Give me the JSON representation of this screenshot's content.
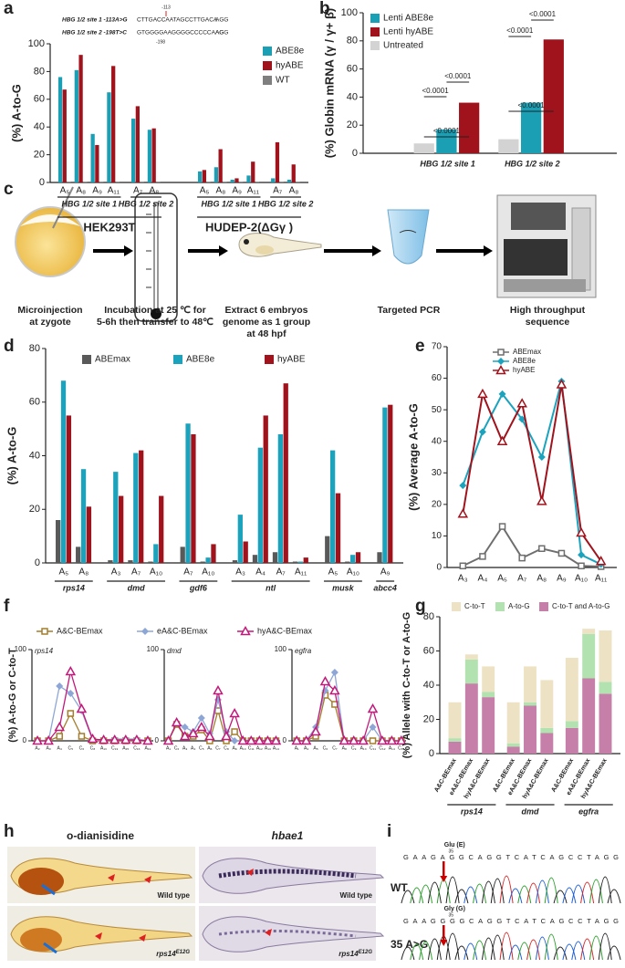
{
  "chart_data": [
    {
      "type": "bar",
      "panel": "a",
      "ylabel": "(%) A-to-G",
      "sequences": [
        {
          "label": "HBG 1/2 site 1 -113A>G",
          "sequence": "CTTGACCAATAGCCTTGACA",
          "pam": "AGG",
          "position": "-113"
        },
        {
          "label": "HBG 1/2 site 2 -198T>C",
          "sequence": "GTGGGGAAGGGGCCCCCAAG",
          "pam": "AGG",
          "position": "-198"
        }
      ],
      "groups": [
        {
          "label": "HEK293T",
          "groups": [
            {
              "label": "HBG 1/2 site 1",
              "categories": [
                "A₅",
                "A₈",
                "A₉",
                "A₁₁"
              ]
            },
            {
              "label": "HBG 1/2 site 2",
              "categories": [
                "A₇",
                "A₈"
              ]
            }
          ]
        },
        {
          "label": "HUDEP-2(ΔGγ )",
          "groups": [
            {
              "label": "HBG 1/2 site 1",
              "categories": [
                "A₅",
                "A₈",
                "A₉",
                "A₁₁"
              ]
            },
            {
              "label": "HBG 1/2 site 2",
              "categories": [
                "A₇",
                "A₈"
              ]
            }
          ]
        }
      ],
      "series": [
        {
          "name": "ABE8e",
          "color": "#1b9fb5",
          "values": [
            76,
            81,
            35,
            65,
            46,
            38,
            8,
            11,
            2,
            5,
            3,
            2
          ]
        },
        {
          "name": "hyABE",
          "color": "#a1131c",
          "values": [
            67,
            92,
            27,
            84,
            55,
            39,
            9,
            24,
            3,
            15,
            29,
            13
          ]
        },
        {
          "name": "WT",
          "color": "#7f7f7f",
          "values": [
            0.5,
            0.5,
            0.5,
            0.5,
            0.5,
            0.5,
            0.5,
            0.5,
            0.5,
            0.5,
            0.5,
            0.5
          ]
        }
      ],
      "ylim": [
        0,
        100
      ],
      "yticks": [
        0,
        20,
        40,
        60,
        80,
        100
      ]
    },
    {
      "type": "bar",
      "panel": "b",
      "ylabel": "(%) Globin mRNA (γ / γ+ β)",
      "categories": [
        "HBG 1/2 site 1",
        "HBG 1/2 site 2"
      ],
      "series": [
        {
          "name": "Lenti ABE8e",
          "color": "#1b9fb5",
          "values": [
            17,
            36
          ]
        },
        {
          "name": "Lenti hyABE",
          "color": "#a1131c",
          "values": [
            36,
            81
          ]
        },
        {
          "name": "Untreated",
          "color": "#d3d3d3",
          "values": [
            7,
            10
          ]
        }
      ],
      "annotations": [
        "<0.0001",
        "<0.0001",
        "<0.0001",
        "<0.0001",
        "<0.0001",
        "<0.0001"
      ],
      "ylim": [
        0,
        100
      ],
      "yticks": [
        0,
        20,
        40,
        60,
        80,
        100
      ]
    },
    {
      "type": "bar",
      "panel": "d",
      "ylabel": "(%) A-to-G",
      "groups": [
        {
          "label": "rps14",
          "categories": [
            "A₅",
            "A₈"
          ]
        },
        {
          "label": "dmd",
          "categories": [
            "A₃",
            "A₇",
            "A₁₀"
          ]
        },
        {
          "label": "gdf6",
          "categories": [
            "A₇",
            "A₁₀"
          ]
        },
        {
          "label": "ntl",
          "categories": [
            "A₃",
            "A₄",
            "A₇",
            "A₁₁"
          ]
        },
        {
          "label": "musk",
          "categories": [
            "A₅",
            "A₁₀"
          ]
        },
        {
          "label": "abcc4",
          "categories": [
            "A₉"
          ]
        }
      ],
      "series": [
        {
          "name": "ABEmax",
          "color": "#595959",
          "values": [
            16,
            6,
            1,
            1,
            0.5,
            6,
            0.5,
            1,
            3,
            4,
            0.5,
            10,
            0.5,
            4
          ]
        },
        {
          "name": "ABE8e",
          "color": "#1ba3bd",
          "values": [
            68,
            35,
            34,
            41,
            7,
            52,
            2,
            18,
            43,
            48,
            0.5,
            42,
            3,
            58
          ]
        },
        {
          "name": "hyABE",
          "color": "#a1131c",
          "values": [
            55,
            21,
            25,
            42,
            25,
            48,
            7,
            8,
            55,
            67,
            2,
            26,
            4,
            59
          ]
        }
      ],
      "ylim": [
        0,
        80
      ],
      "yticks": [
        0,
        20,
        40,
        60,
        80
      ]
    },
    {
      "type": "line",
      "panel": "e",
      "ylabel": "(%) Average A-to-G",
      "categories": [
        "A₃",
        "A₄",
        "A₅",
        "A₇",
        "A₈",
        "A₉",
        "A₁₀",
        "A₁₁"
      ],
      "series": [
        {
          "name": "ABEmax",
          "color": "#6e6e6e",
          "marker": "square",
          "values": [
            0.5,
            3.5,
            13,
            3,
            6,
            4.5,
            0.5,
            0.3
          ]
        },
        {
          "name": "ABE8e",
          "color": "#1ba3bd",
          "marker": "diamond",
          "values": [
            26,
            43,
            55,
            47,
            35,
            59,
            4,
            1
          ]
        },
        {
          "name": "hyABE",
          "color": "#a1131c",
          "marker": "triangle",
          "values": [
            17,
            55,
            40,
            52,
            21,
            58,
            11,
            2
          ]
        }
      ],
      "ylim": [
        0,
        70
      ],
      "yticks": [
        0,
        10,
        20,
        30,
        40,
        50,
        60,
        70
      ]
    },
    {
      "type": "multi_line",
      "panel": "f",
      "ylabel": "(%) A-to-G or C-to-T",
      "series": [
        {
          "name": "A&C-BEmax",
          "color": "#a57d2c",
          "marker": "square"
        },
        {
          "name": "eA&C-BEmax",
          "color": "#8ea6d6",
          "marker": "diamond"
        },
        {
          "name": "hyA&C-BEmax",
          "color": "#c2187a",
          "marker": "triangle"
        }
      ],
      "subplots": [
        {
          "title": "rps14",
          "categories": [
            "A₂",
            "A₃",
            "A₄",
            "C₅",
            "C₆",
            "C₈",
            "A₁₀",
            "C₁₃",
            "A₁₅",
            "C₁₆",
            "A₁₉"
          ],
          "values": [
            [
              0,
              0,
              5,
              30,
              5,
              0,
              0,
              0,
              0,
              0,
              0
            ],
            [
              0,
              0,
              60,
              52,
              33,
              1,
              1,
              2,
              2,
              2,
              0
            ],
            [
              0,
              0,
              15,
              76,
              35,
              2,
              1,
              1,
              1,
              1,
              0
            ]
          ]
        },
        {
          "title": "dmd",
          "categories": [
            "A₁",
            "C₂",
            "A₃",
            "A₄",
            "C₅",
            "A₆",
            "C₇",
            "C₈",
            "A₉",
            "A₁₀",
            "C₁₁",
            "A₁₂",
            "A₁₃",
            "A₁₄"
          ],
          "values": [
            [
              0,
              18,
              5,
              5,
              12,
              0,
              33,
              0,
              10,
              0,
              0,
              0,
              0,
              0
            ],
            [
              0,
              20,
              15,
              10,
              25,
              8,
              45,
              10,
              0,
              0,
              0,
              0,
              0,
              0
            ],
            [
              0,
              20,
              5,
              8,
              15,
              5,
              55,
              5,
              30,
              0,
              0,
              0,
              0,
              0
            ]
          ]
        },
        {
          "title": "egfra",
          "categories": [
            "A₁",
            "A₃",
            "A₅",
            "C₆",
            "C₇",
            "A₈",
            "C₉",
            "A₁₀",
            "C₁₁",
            "C₁₂",
            "A₁₄",
            "C₁₅"
          ],
          "values": [
            [
              0,
              0,
              5,
              50,
              40,
              0,
              0,
              0,
              0,
              0,
              0,
              0
            ],
            [
              0,
              0,
              15,
              55,
              75,
              0,
              0,
              0,
              15,
              0,
              0,
              0
            ],
            [
              0,
              0,
              10,
              65,
              55,
              0,
              0,
              0,
              35,
              0,
              0,
              0
            ]
          ]
        }
      ],
      "ylim": [
        0,
        100
      ],
      "yticks": [
        0,
        100
      ]
    },
    {
      "type": "stacked_bar",
      "panel": "g",
      "ylabel": "(%) Allele with C-to-T or A-to-G",
      "groups": [
        {
          "label": "rps14",
          "categories": [
            "A&C-BEmax",
            "eA&C-BEmax",
            "hyA&C-BEmax"
          ]
        },
        {
          "label": "dmd",
          "categories": [
            "A&C-BEmax",
            "eA&C-BEmax",
            "hyA&C-BEmax"
          ]
        },
        {
          "label": "egfra",
          "categories": [
            "A&C-BEmax",
            "eA&C-BEmax",
            "hyA&C-BEmax"
          ]
        }
      ],
      "series": [
        {
          "name": "C-to-T",
          "color": "#ede3c4",
          "values": [
            21,
            3,
            15,
            24,
            21,
            28,
            37,
            3,
            30
          ]
        },
        {
          "name": "A-to-G",
          "color": "#b2e2b0",
          "values": [
            2,
            14,
            3,
            2,
            2,
            3,
            4,
            26,
            7
          ]
        },
        {
          "name": "C-to-T and A-to-G",
          "color": "#c57fa8",
          "values": [
            7,
            41,
            33,
            4,
            28,
            12,
            15,
            44,
            35
          ]
        }
      ],
      "ylim": [
        0,
        80
      ],
      "yticks": [
        0,
        20,
        40,
        60,
        80
      ]
    }
  ],
  "schematic": {
    "panel": "c",
    "steps": [
      [
        "Microinjection",
        "at zygote"
      ],
      [
        "Incubation at 25 ℃ for",
        "5-6h then transfer to 48℃"
      ],
      [
        "Extract 6 embryos",
        "genome as 1 group",
        "at 48 hpf"
      ],
      [
        "Targeted PCR"
      ],
      [
        "High throughput",
        "sequence"
      ]
    ]
  },
  "images": {
    "panel": "h",
    "columns": [
      "o-dianisidine",
      "hbae1"
    ],
    "panels": [
      {
        "caption": "Wild type"
      },
      {
        "caption": "Wild type"
      },
      {
        "gene": "rps14",
        "allele": "E12G"
      },
      {
        "gene": "rps14",
        "allele": "E12G"
      }
    ]
  },
  "sequencing": {
    "panel": "i",
    "traces": [
      {
        "label": "WT",
        "codon": "Glu (E)",
        "position": "35",
        "bases": "GAAGAGGCAGGTCATCAGCCTAGG"
      },
      {
        "label": "35 A>G",
        "codon": "Gly (G)",
        "position": "35",
        "bases": "GAAGGGGCAGGTCATCAGCCTAGG"
      }
    ]
  }
}
